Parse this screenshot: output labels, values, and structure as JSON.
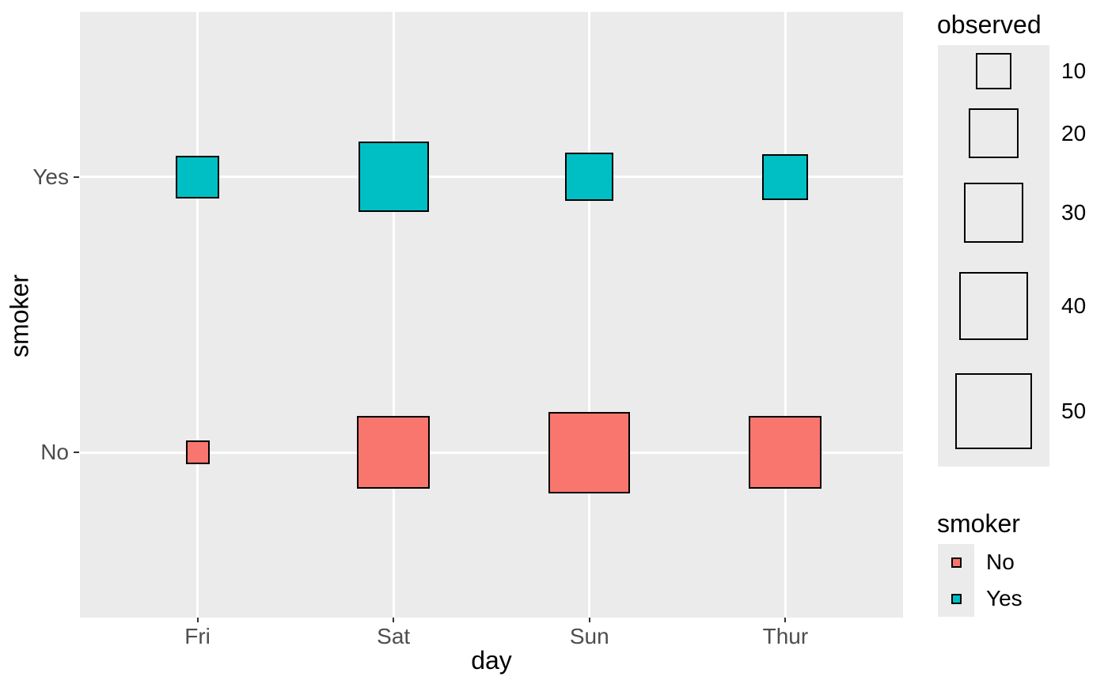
{
  "chart_data": {
    "type": "scatter",
    "subtype": "size-encoded-square-count-plot",
    "title": "",
    "xlabel": "day",
    "ylabel": "smoker",
    "x_categories": [
      "Fri",
      "Sat",
      "Sun",
      "Thur"
    ],
    "y_categories": [
      "No",
      "Yes"
    ],
    "series": [
      {
        "name": "No",
        "color": "#F8766D",
        "values": [
          4,
          45,
          57,
          45
        ]
      },
      {
        "name": "Yes",
        "color": "#00BFC4",
        "values": [
          15,
          42,
          19,
          17
        ]
      }
    ],
    "size_legend": {
      "title": "observed",
      "values": [
        10,
        20,
        30,
        40,
        50
      ]
    },
    "color_legend": {
      "title": "smoker",
      "entries": [
        {
          "label": "No",
          "color": "#F8766D"
        },
        {
          "label": "Yes",
          "color": "#00BFC4"
        }
      ]
    },
    "grid": true,
    "legend_position": "right"
  },
  "colors": {
    "panel_bg": "#EBEBEB",
    "grid": "#FFFFFF",
    "square_stroke": "#000000",
    "tick_label": "#4D4D4D",
    "tick_mark": "#333333",
    "axis_title": "#000000",
    "legend_key_bg": "#EBEBEB",
    "legend_text": "#000000"
  }
}
